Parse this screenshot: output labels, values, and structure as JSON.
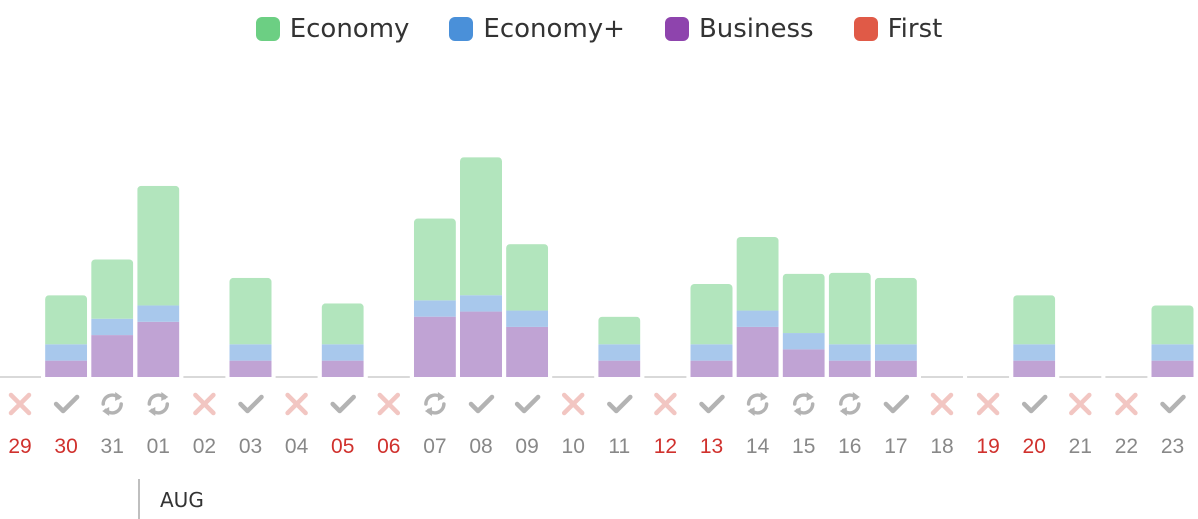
{
  "chart_data": {
    "type": "bar",
    "stacked": true,
    "title": "",
    "xlabel": "",
    "ylabel": "",
    "legend": "top-center",
    "grid": false,
    "month_label": "AUG",
    "categories": [
      "29",
      "30",
      "31",
      "01",
      "02",
      "03",
      "04",
      "05",
      "06",
      "07",
      "08",
      "09",
      "10",
      "11",
      "12",
      "13",
      "14",
      "15",
      "16",
      "17",
      "18",
      "19",
      "20",
      "21",
      "22",
      "23"
    ],
    "highlighted_categories": [
      "29",
      "30",
      "05",
      "06",
      "12",
      "13",
      "19",
      "20"
    ],
    "status": [
      "cross",
      "check",
      "sync",
      "sync",
      "cross",
      "check",
      "cross",
      "check",
      "cross",
      "sync",
      "check",
      "check",
      "cross",
      "check",
      "cross",
      "check",
      "sync",
      "sync",
      "sync",
      "check",
      "cross",
      "cross",
      "check",
      "cross",
      "cross",
      "check"
    ],
    "ylim": [
      0,
      225
    ],
    "series": [
      {
        "name": "Business",
        "color": "#8e44ad",
        "fill": "#c0a3d4",
        "values": [
          0,
          16,
          41,
          54,
          0,
          16,
          0,
          16,
          0,
          59,
          64,
          49,
          0,
          16,
          0,
          16,
          49,
          27,
          16,
          16,
          0,
          0,
          16,
          0,
          0,
          16
        ]
      },
      {
        "name": "Economy+",
        "color": "#4a90d9",
        "fill": "#a8c8ec",
        "values": [
          0,
          16,
          16,
          16,
          0,
          16,
          0,
          16,
          0,
          16,
          16,
          16,
          0,
          16,
          0,
          16,
          16,
          16,
          16,
          16,
          0,
          0,
          16,
          0,
          0,
          16
        ]
      },
      {
        "name": "Economy",
        "color": "#6ccf83",
        "fill": "#b2e5bd",
        "values": [
          0,
          48,
          58,
          117,
          0,
          65,
          0,
          40,
          0,
          80,
          135,
          65,
          0,
          27,
          0,
          59,
          72,
          58,
          70,
          65,
          0,
          0,
          48,
          0,
          0,
          38
        ]
      },
      {
        "name": "First",
        "color": "#e05a47",
        "fill": "#f0a89e",
        "values": [
          0,
          0,
          0,
          0,
          0,
          0,
          0,
          0,
          0,
          0,
          0,
          0,
          0,
          0,
          0,
          0,
          0,
          0,
          0,
          0,
          0,
          0,
          0,
          0,
          0,
          0
        ]
      }
    ],
    "legend_order": [
      "Economy",
      "Economy+",
      "Business",
      "First"
    ],
    "colors": {
      "tick_normal": "#888888",
      "tick_highlight": "#d0312d",
      "icon_check": "#b3b3b3",
      "icon_sync": "#b3b3b3",
      "icon_cross": "#f2c6c2",
      "baseline": "#d9d9d9"
    }
  }
}
